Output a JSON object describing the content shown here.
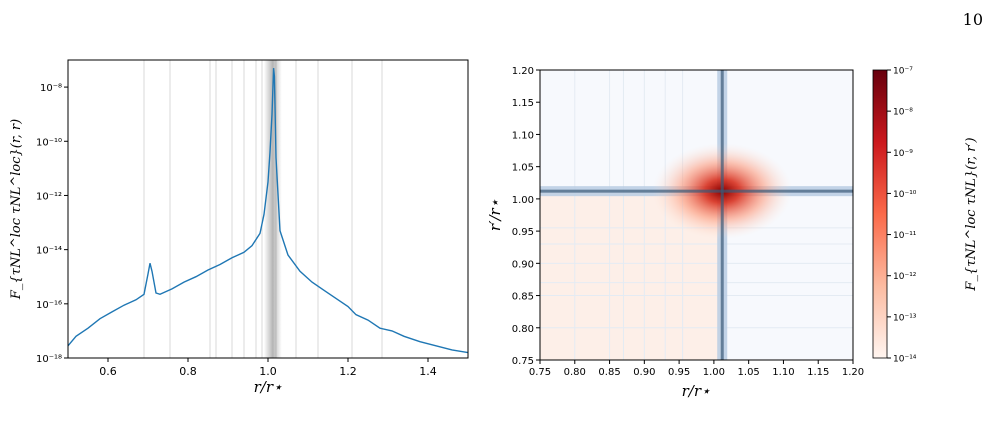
{
  "page": {
    "number": "10"
  },
  "colors": {
    "line": "#1f77b4",
    "grid": "#cfcfcf",
    "shade": "#7f7f7f"
  },
  "chart_data": [
    {
      "type": "line",
      "xlabel": "r/r⋆",
      "ylabel": "F_{τNL^loc τNL^loc}(r, r)",
      "xlim": [
        0.5,
        1.5
      ],
      "ylim_log10": [
        -18,
        -7
      ],
      "yscale": "log",
      "x_ticks": [
        "0.6",
        "0.8",
        "1.0",
        "1.2",
        "1.4"
      ],
      "y_ticks": [
        "10⁻¹⁸",
        "10⁻¹⁶",
        "10⁻¹⁴",
        "10⁻¹²",
        "10⁻¹⁰",
        "10⁻⁸"
      ],
      "vlines": [
        0.69,
        0.755,
        0.855,
        0.87,
        0.91,
        0.94,
        0.97,
        0.985,
        1.02,
        1.07,
        1.125,
        1.21,
        1.285
      ],
      "shade_center": 1.012,
      "series": [
        {
          "points": [
            [
              0.5,
              -17.55
            ],
            [
              0.52,
              -17.2
            ],
            [
              0.55,
              -16.9
            ],
            [
              0.58,
              -16.55
            ],
            [
              0.61,
              -16.3
            ],
            [
              0.64,
              -16.05
            ],
            [
              0.67,
              -15.85
            ],
            [
              0.69,
              -15.65
            ],
            [
              0.7,
              -14.9
            ],
            [
              0.705,
              -14.5
            ],
            [
              0.71,
              -14.8
            ],
            [
              0.72,
              -15.6
            ],
            [
              0.73,
              -15.65
            ],
            [
              0.76,
              -15.45
            ],
            [
              0.79,
              -15.2
            ],
            [
              0.82,
              -15.0
            ],
            [
              0.85,
              -14.75
            ],
            [
              0.88,
              -14.55
            ],
            [
              0.91,
              -14.3
            ],
            [
              0.94,
              -14.1
            ],
            [
              0.96,
              -13.85
            ],
            [
              0.98,
              -13.4
            ],
            [
              0.99,
              -12.7
            ],
            [
              1.0,
              -11.5
            ],
            [
              1.005,
              -10.4
            ],
            [
              1.01,
              -9.0
            ],
            [
              1.014,
              -7.3
            ],
            [
              1.016,
              -7.6
            ],
            [
              1.02,
              -10.6
            ],
            [
              1.03,
              -13.3
            ],
            [
              1.05,
              -14.2
            ],
            [
              1.08,
              -14.8
            ],
            [
              1.11,
              -15.2
            ],
            [
              1.14,
              -15.5
            ],
            [
              1.17,
              -15.8
            ],
            [
              1.2,
              -16.1
            ],
            [
              1.22,
              -16.4
            ],
            [
              1.25,
              -16.6
            ],
            [
              1.28,
              -16.9
            ],
            [
              1.31,
              -17.0
            ],
            [
              1.34,
              -17.2
            ],
            [
              1.38,
              -17.4
            ],
            [
              1.42,
              -17.55
            ],
            [
              1.46,
              -17.7
            ],
            [
              1.5,
              -17.8
            ]
          ]
        }
      ]
    },
    {
      "type": "heatmap",
      "xlabel": "r/r⋆",
      "ylabel": "r′/r⋆",
      "xlim": [
        0.75,
        1.2
      ],
      "ylim": [
        0.75,
        1.2
      ],
      "x_ticks": [
        "0.75",
        "0.80",
        "0.85",
        "0.90",
        "0.95",
        "1.00",
        "1.05",
        "1.10",
        "1.15",
        "1.20"
      ],
      "y_ticks": [
        "0.75",
        "0.80",
        "0.85",
        "0.90",
        "0.95",
        "1.00",
        "1.05",
        "1.10",
        "1.15",
        "1.20"
      ],
      "peak": [
        1.012,
        1.012
      ],
      "colorbar": {
        "label": "F_{τNL^loc τNL}(r, r′)",
        "ticks": [
          "10⁻¹⁴",
          "10⁻¹³",
          "10⁻¹²",
          "10⁻¹¹",
          "10⁻¹⁰",
          "10⁻⁹",
          "10⁻⁸",
          "10⁻⁷"
        ],
        "range_log10": [
          -14,
          -7
        ],
        "cmap": "Reds"
      }
    }
  ]
}
